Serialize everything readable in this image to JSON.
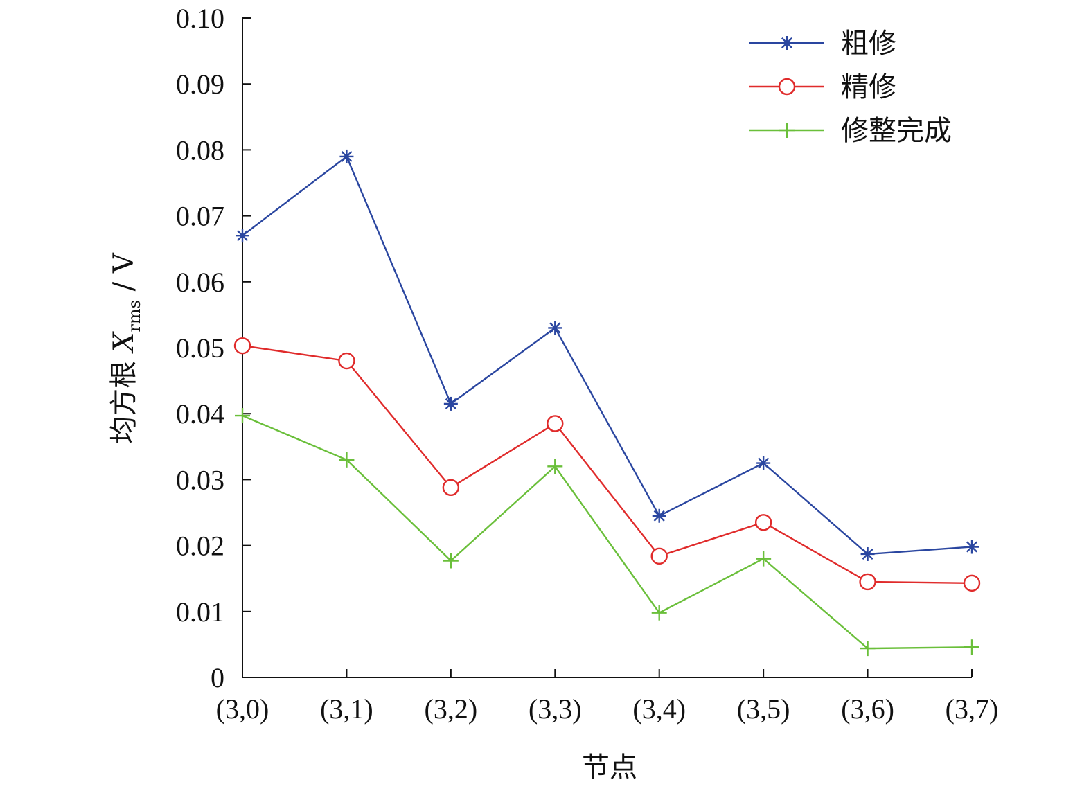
{
  "chart_data": {
    "type": "line",
    "title": "",
    "xlabel": "节点",
    "ylabel": {
      "main": "均方根 ",
      "symbol": "X",
      "subscript": "rms",
      "unit": " / V"
    },
    "categories": [
      "(3,0)",
      "(3,1)",
      "(3,2)",
      "(3,3)",
      "(3,4)",
      "(3,5)",
      "(3,6)",
      "(3,7)"
    ],
    "ylim": [
      0,
      0.1
    ],
    "yticks": [
      "0",
      "0.01",
      "0.02",
      "0.03",
      "0.04",
      "0.05",
      "0.06",
      "0.07",
      "0.08",
      "0.09",
      "0.10"
    ],
    "legend_position": "top-right",
    "grid": false,
    "series": [
      {
        "name": "粗修",
        "color": "#2a46a0",
        "marker": "asterisk",
        "values": [
          0.067,
          0.079,
          0.0415,
          0.053,
          0.0245,
          0.0325,
          0.0187,
          0.0198
        ]
      },
      {
        "name": "精修",
        "color": "#e02b2b",
        "marker": "circle",
        "values": [
          0.0503,
          0.048,
          0.0288,
          0.0385,
          0.0184,
          0.0235,
          0.0145,
          0.0143
        ]
      },
      {
        "name": "修整完成",
        "color": "#6abf3a",
        "marker": "plus",
        "values": [
          0.0397,
          0.033,
          0.0177,
          0.032,
          0.0098,
          0.018,
          0.0044,
          0.0046
        ]
      }
    ]
  }
}
